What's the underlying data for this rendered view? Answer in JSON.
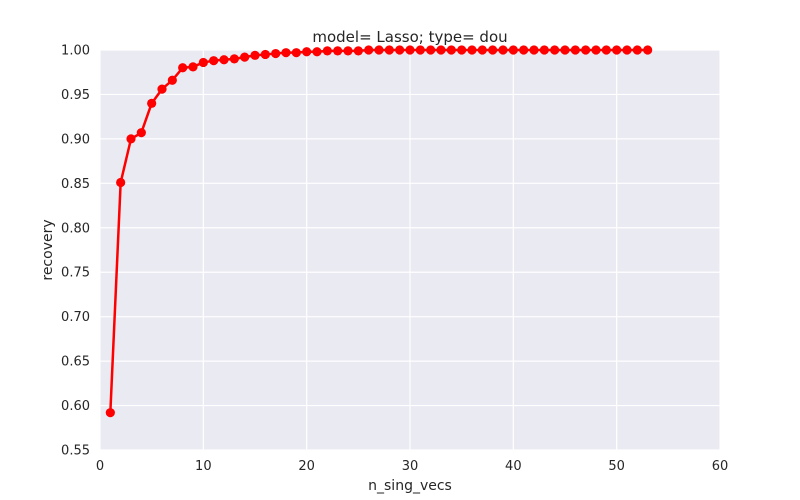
{
  "chart_data": {
    "type": "line",
    "title": "model= Lasso; type= dou",
    "xlabel": "n_sing_vecs",
    "ylabel": "recovery",
    "xlim": [
      0,
      60
    ],
    "ylim": [
      0.55,
      1.0
    ],
    "xticks": [
      0,
      10,
      20,
      30,
      40,
      50,
      60
    ],
    "xtick_labels": [
      "0",
      "10",
      "20",
      "30",
      "40",
      "50",
      "60"
    ],
    "yticks": [
      0.55,
      0.6,
      0.65,
      0.7,
      0.75,
      0.8,
      0.85,
      0.9,
      0.95,
      1.0
    ],
    "ytick_labels": [
      "0.55",
      "0.60",
      "0.65",
      "0.70",
      "0.75",
      "0.80",
      "0.85",
      "0.90",
      "0.95",
      "1.00"
    ],
    "grid": true,
    "background_color": "#eaeaf2",
    "grid_color": "#ffffff",
    "series": [
      {
        "color": "#ff0000",
        "marker": "circle",
        "x": [
          1,
          2,
          3,
          4,
          5,
          6,
          7,
          8,
          9,
          10,
          11,
          12,
          13,
          14,
          15,
          16,
          17,
          18,
          19,
          20,
          21,
          22,
          23,
          24,
          25,
          26,
          27,
          28,
          29,
          30,
          31,
          32,
          33,
          34,
          35,
          36,
          37,
          38,
          39,
          40,
          41,
          42,
          43,
          44,
          45,
          46,
          47,
          48,
          49,
          50,
          51,
          52,
          53
        ],
        "y": [
          0.592,
          0.851,
          0.9,
          0.907,
          0.94,
          0.956,
          0.966,
          0.98,
          0.981,
          0.986,
          0.988,
          0.989,
          0.99,
          0.992,
          0.994,
          0.995,
          0.996,
          0.997,
          0.997,
          0.998,
          0.998,
          0.999,
          0.999,
          0.999,
          0.999,
          1.0,
          1.0,
          1.0,
          1.0,
          1.0,
          1.0,
          1.0,
          1.0,
          1.0,
          1.0,
          1.0,
          1.0,
          1.0,
          1.0,
          1.0,
          1.0,
          1.0,
          1.0,
          1.0,
          1.0,
          1.0,
          1.0,
          1.0,
          1.0,
          1.0,
          1.0,
          1.0,
          1.0
        ]
      }
    ]
  }
}
